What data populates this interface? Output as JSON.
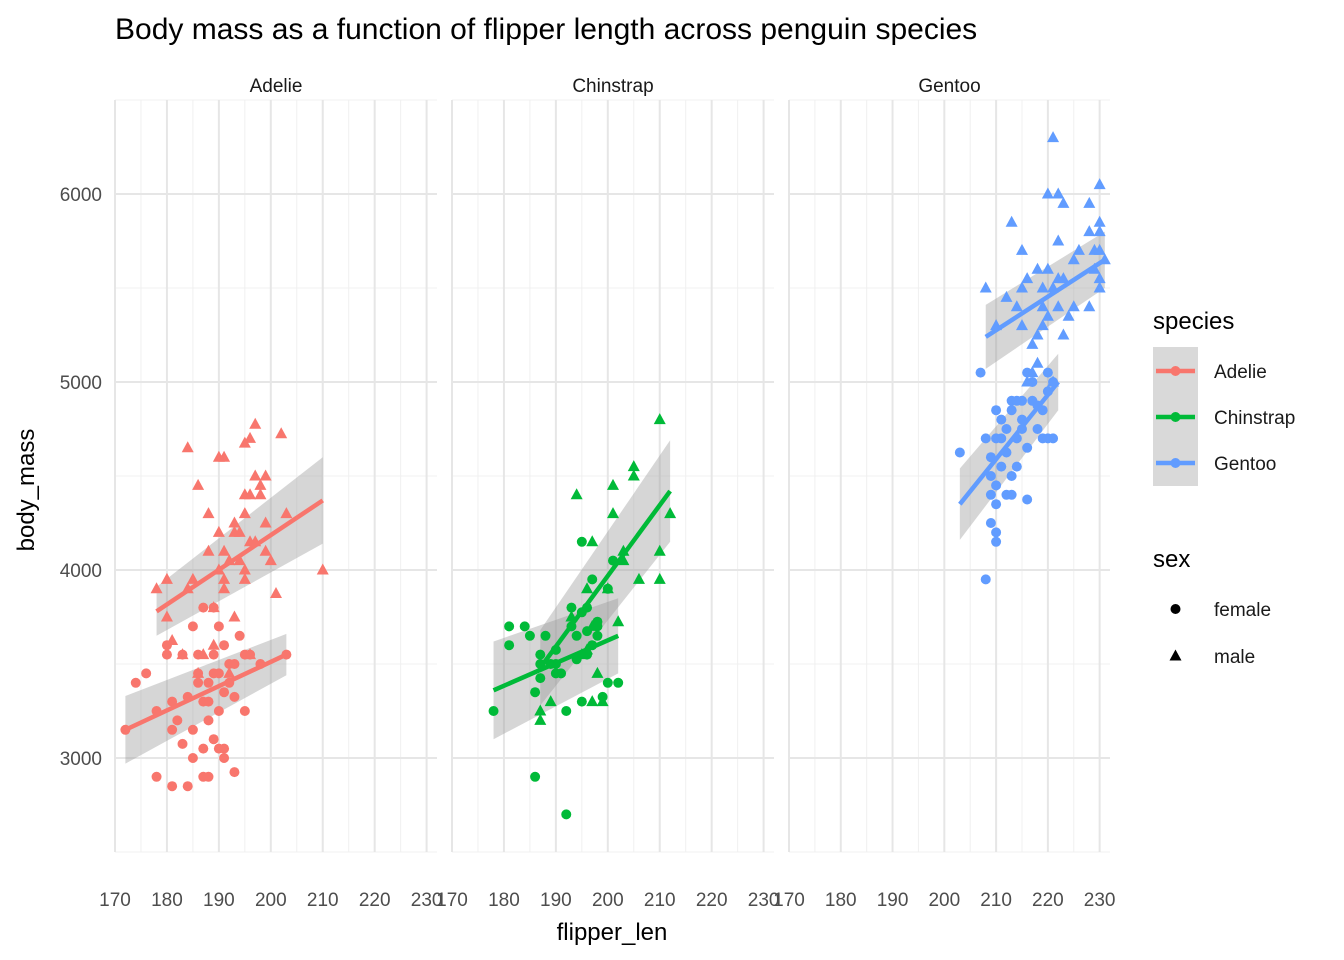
{
  "chart_data": {
    "type": "scatter",
    "title": "Body mass as a function of flipper length across penguin species",
    "xlabel": "flipper_len",
    "ylabel": "body_mass",
    "xlim": [
      170,
      232
    ],
    "ylim": [
      2500,
      6500
    ],
    "x_ticks": [
      "170",
      "180",
      "190",
      "200",
      "210",
      "220",
      "230"
    ],
    "y_ticks": [
      "3000",
      "4000",
      "5000",
      "6000"
    ],
    "grid": true,
    "facets": [
      "Adelie",
      "Chinstrap",
      "Gentoo"
    ],
    "legend": {
      "position": "right",
      "species_title": "species",
      "species": [
        {
          "name": "Adelie",
          "color": "#F8766D"
        },
        {
          "name": "Chinstrap",
          "color": "#00BA38"
        },
        {
          "name": "Gentoo",
          "color": "#619CFF"
        }
      ],
      "sex_title": "sex",
      "sex": [
        {
          "name": "female",
          "shape": "circle"
        },
        {
          "name": "male",
          "shape": "triangle"
        }
      ]
    },
    "series": [
      {
        "species": "Adelie",
        "female": [
          [
            172,
            3150
          ],
          [
            174,
            3400
          ],
          [
            176,
            3450
          ],
          [
            178,
            3250
          ],
          [
            178,
            2900
          ],
          [
            180,
            3550
          ],
          [
            180,
            3600
          ],
          [
            181,
            3300
          ],
          [
            181,
            3150
          ],
          [
            181,
            2850
          ],
          [
            182,
            3200
          ],
          [
            183,
            3550
          ],
          [
            183,
            3075
          ],
          [
            184,
            3325
          ],
          [
            184,
            2850
          ],
          [
            185,
            3700
          ],
          [
            185,
            3150
          ],
          [
            185,
            3000
          ],
          [
            186,
            3550
          ],
          [
            186,
            3400
          ],
          [
            186,
            3450
          ],
          [
            187,
            3800
          ],
          [
            187,
            3300
          ],
          [
            187,
            3050
          ],
          [
            187,
            2900
          ],
          [
            188,
            3400
          ],
          [
            188,
            3200
          ],
          [
            188,
            3300
          ],
          [
            188,
            2900
          ],
          [
            189,
            3800
          ],
          [
            189,
            3550
          ],
          [
            189,
            3450
          ],
          [
            189,
            3100
          ],
          [
            190,
            3700
          ],
          [
            190,
            3250
          ],
          [
            190,
            3450
          ],
          [
            190,
            3050
          ],
          [
            191,
            3600
          ],
          [
            191,
            3350
          ],
          [
            191,
            3050
          ],
          [
            191,
            3000
          ],
          [
            192,
            3500
          ],
          [
            192,
            3400
          ],
          [
            193,
            3500
          ],
          [
            193,
            3325
          ],
          [
            193,
            2925
          ],
          [
            194,
            3650
          ],
          [
            195,
            3550
          ],
          [
            195,
            3250
          ],
          [
            196,
            3550
          ],
          [
            198,
            3500
          ],
          [
            203,
            3550
          ]
        ],
        "male": [
          [
            178,
            3900
          ],
          [
            180,
            3750
          ],
          [
            180,
            3950
          ],
          [
            181,
            3625
          ],
          [
            183,
            3550
          ],
          [
            184,
            3900
          ],
          [
            184,
            4650
          ],
          [
            185,
            3950
          ],
          [
            186,
            4450
          ],
          [
            186,
            3450
          ],
          [
            187,
            3550
          ],
          [
            188,
            4300
          ],
          [
            188,
            4100
          ],
          [
            189,
            3800
          ],
          [
            189,
            3600
          ],
          [
            190,
            4600
          ],
          [
            190,
            4000
          ],
          [
            190,
            4200
          ],
          [
            191,
            4600
          ],
          [
            191,
            3900
          ],
          [
            191,
            3950
          ],
          [
            191,
            4100
          ],
          [
            192,
            4050
          ],
          [
            192,
            3450
          ],
          [
            193,
            4250
          ],
          [
            193,
            4200
          ],
          [
            193,
            3750
          ],
          [
            194,
            4200
          ],
          [
            194,
            4050
          ],
          [
            195,
            4300
          ],
          [
            195,
            4675
          ],
          [
            195,
            4400
          ],
          [
            195,
            4000
          ],
          [
            195,
            3950
          ],
          [
            196,
            4700
          ],
          [
            196,
            4400
          ],
          [
            196,
            4150
          ],
          [
            196,
            3550
          ],
          [
            197,
            4775
          ],
          [
            197,
            4500
          ],
          [
            197,
            4150
          ],
          [
            198,
            4450
          ],
          [
            198,
            4400
          ],
          [
            199,
            4500
          ],
          [
            199,
            4100
          ],
          [
            199,
            4250
          ],
          [
            200,
            4050
          ],
          [
            201,
            3875
          ],
          [
            202,
            4725
          ],
          [
            203,
            4300
          ],
          [
            210,
            4000
          ]
        ],
        "fits": [
          {
            "sex": "female",
            "x": [
              172,
              203
            ],
            "y": [
              3150,
              3550
            ],
            "band": [
              180,
              110
            ]
          },
          {
            "sex": "male",
            "x": [
              178,
              210
            ],
            "y": [
              3780,
              4370
            ],
            "band": [
              130,
              230
            ]
          }
        ]
      },
      {
        "species": "Chinstrap",
        "female": [
          [
            178,
            3250
          ],
          [
            181,
            3700
          ],
          [
            181,
            3600
          ],
          [
            184,
            3700
          ],
          [
            185,
            3650
          ],
          [
            186,
            3350
          ],
          [
            186,
            2900
          ],
          [
            187,
            3550
          ],
          [
            187,
            3500
          ],
          [
            188,
            3650
          ],
          [
            189,
            3500
          ],
          [
            190,
            3450
          ],
          [
            190,
            3575
          ],
          [
            191,
            3450
          ],
          [
            192,
            3250
          ],
          [
            192,
            2700
          ],
          [
            193,
            3800
          ],
          [
            193,
            3700
          ],
          [
            194,
            3525
          ],
          [
            195,
            3300
          ],
          [
            195,
            3775
          ],
          [
            195,
            4150
          ],
          [
            196,
            3550
          ],
          [
            196,
            3675
          ],
          [
            196,
            3800
          ],
          [
            197,
            3600
          ],
          [
            197,
            3950
          ],
          [
            198,
            3650
          ],
          [
            198,
            3700
          ],
          [
            198,
            3725
          ],
          [
            199,
            3325
          ],
          [
            200,
            3900
          ],
          [
            200,
            3400
          ],
          [
            201,
            4050
          ],
          [
            202,
            3400
          ],
          [
            187,
            3425
          ],
          [
            190,
            3500
          ],
          [
            194,
            3650
          ]
        ],
        "male": [
          [
            187,
            3250
          ],
          [
            187,
            3200
          ],
          [
            189,
            3300
          ],
          [
            193,
            3750
          ],
          [
            194,
            4400
          ],
          [
            195,
            3550
          ],
          [
            196,
            3900
          ],
          [
            196,
            3575
          ],
          [
            197,
            3700
          ],
          [
            197,
            3300
          ],
          [
            197,
            4150
          ],
          [
            198,
            3450
          ],
          [
            199,
            3300
          ],
          [
            200,
            3900
          ],
          [
            201,
            4300
          ],
          [
            201,
            4450
          ],
          [
            202,
            3725
          ],
          [
            203,
            4050
          ],
          [
            203,
            4100
          ],
          [
            205,
            4550
          ],
          [
            205,
            4500
          ],
          [
            206,
            3950
          ],
          [
            210,
            4800
          ],
          [
            210,
            4100
          ],
          [
            210,
            3950
          ],
          [
            212,
            4300
          ]
        ],
        "fits": [
          {
            "sex": "female",
            "x": [
              178,
              202
            ],
            "y": [
              3360,
              3650
            ],
            "band": [
              260,
              200
            ]
          },
          {
            "sex": "male",
            "x": [
              187,
              212
            ],
            "y": [
              3480,
              4420
            ],
            "band": [
              200,
              270
            ]
          }
        ]
      },
      {
        "species": "Gentoo",
        "female": [
          [
            203,
            4625
          ],
          [
            207,
            5050
          ],
          [
            208,
            4700
          ],
          [
            208,
            3950
          ],
          [
            209,
            4500
          ],
          [
            209,
            4250
          ],
          [
            209,
            4600
          ],
          [
            209,
            4400
          ],
          [
            210,
            4350
          ],
          [
            210,
            4450
          ],
          [
            210,
            4700
          ],
          [
            210,
            4150
          ],
          [
            210,
            4850
          ],
          [
            210,
            4200
          ],
          [
            211,
            4800
          ],
          [
            211,
            4700
          ],
          [
            211,
            4550
          ],
          [
            212,
            4750
          ],
          [
            212,
            4400
          ],
          [
            212,
            4625
          ],
          [
            213,
            4850
          ],
          [
            213,
            4500
          ],
          [
            213,
            4900
          ],
          [
            213,
            4400
          ],
          [
            214,
            4900
          ],
          [
            214,
            4550
          ],
          [
            214,
            4700
          ],
          [
            215,
            4750
          ],
          [
            215,
            4800
          ],
          [
            215,
            4900
          ],
          [
            216,
            5050
          ],
          [
            216,
            4375
          ],
          [
            216,
            4650
          ],
          [
            217,
            4900
          ],
          [
            217,
            5000
          ],
          [
            218,
            4750
          ],
          [
            218,
            4875
          ],
          [
            219,
            4700
          ],
          [
            219,
            4850
          ],
          [
            220,
            4700
          ],
          [
            220,
            5050
          ],
          [
            220,
            4950
          ],
          [
            221,
            4700
          ],
          [
            221,
            5000
          ]
        ],
        "male": [
          [
            208,
            5500
          ],
          [
            210,
            5300
          ],
          [
            212,
            5450
          ],
          [
            213,
            5850
          ],
          [
            214,
            5400
          ],
          [
            215,
            5700
          ],
          [
            215,
            5300
          ],
          [
            215,
            5500
          ],
          [
            216,
            5550
          ],
          [
            216,
            5000
          ],
          [
            217,
            5200
          ],
          [
            217,
            5050
          ],
          [
            218,
            5600
          ],
          [
            218,
            5250
          ],
          [
            218,
            5100
          ],
          [
            219,
            5400
          ],
          [
            219,
            5500
          ],
          [
            219,
            5300
          ],
          [
            220,
            6000
          ],
          [
            220,
            5350
          ],
          [
            220,
            5600
          ],
          [
            221,
            6300
          ],
          [
            221,
            5500
          ],
          [
            221,
            5000
          ],
          [
            222,
            6000
          ],
          [
            222,
            5750
          ],
          [
            222,
            5550
          ],
          [
            222,
            5400
          ],
          [
            223,
            5950
          ],
          [
            223,
            5550
          ],
          [
            223,
            5250
          ],
          [
            224,
            5350
          ],
          [
            225,
            5650
          ],
          [
            225,
            5400
          ],
          [
            226,
            5700
          ],
          [
            228,
            5950
          ],
          [
            228,
            5800
          ],
          [
            228,
            5400
          ],
          [
            229,
            5700
          ],
          [
            229,
            5600
          ],
          [
            230,
            5800
          ],
          [
            230,
            6050
          ],
          [
            230,
            5500
          ],
          [
            230,
            5850
          ],
          [
            230,
            5550
          ],
          [
            230,
            5700
          ],
          [
            231,
            5650
          ]
        ],
        "fits": [
          {
            "sex": "female",
            "x": [
              203,
              222
            ],
            "y": [
              4350,
              5000
            ],
            "band": [
              190,
              150
            ]
          },
          {
            "sex": "male",
            "x": [
              208,
              231
            ],
            "y": [
              5240,
              5650
            ],
            "band": [
              170,
              150
            ]
          }
        ]
      }
    ]
  }
}
